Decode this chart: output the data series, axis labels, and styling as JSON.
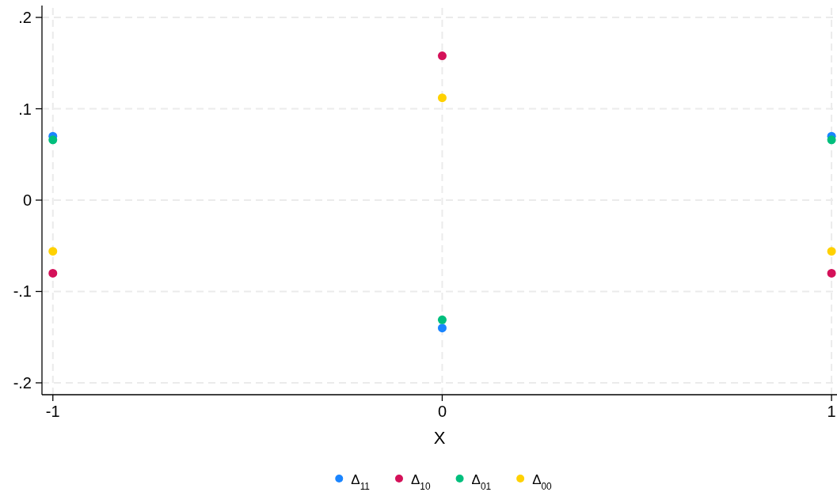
{
  "chart_data": {
    "type": "scatter",
    "xlabel": "X",
    "x": [
      -1,
      0,
      1
    ],
    "series": [
      {
        "name": "Δ$_{11}$",
        "color": "#1a85ff",
        "values": [
          0.07,
          -0.14,
          0.07
        ]
      },
      {
        "name": "Δ$_{10}$",
        "color": "#d41159",
        "values": [
          -0.08,
          0.158,
          -0.08
        ]
      },
      {
        "name": "Δ$_{01}$",
        "color": "#00bf7d",
        "values": [
          0.066,
          -0.131,
          0.066
        ]
      },
      {
        "name": "Δ$_{00}$",
        "color": "#ffd100",
        "values": [
          -0.056,
          0.112,
          -0.056
        ]
      }
    ],
    "xlim": [
      -1.028,
      1.014
    ],
    "ylim": [
      -0.213,
      0.213
    ],
    "xticks": [
      -1,
      0,
      1
    ],
    "yticks": [
      {
        "value": -0.2,
        "label": "-.2"
      },
      {
        "value": -0.1,
        "label": "-.1"
      },
      0,
      {
        "value": 0.1,
        "label": ".1"
      },
      {
        "value": 0.2,
        "label": ".2"
      }
    ],
    "grid": true,
    "legend": "bottom",
    "marker": "circle"
  }
}
